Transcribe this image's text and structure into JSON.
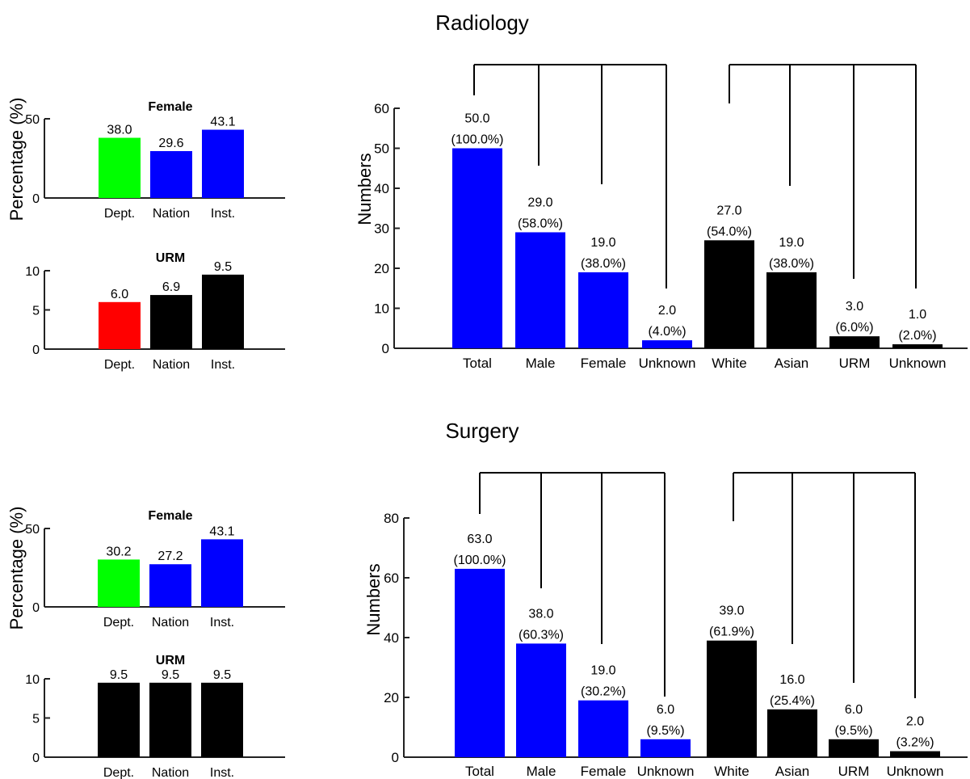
{
  "chart_data": [
    {
      "type": "bar",
      "panel": "radiology-female",
      "title": "Female",
      "ylabel": "Percentage (%)",
      "ylim": [
        0,
        50
      ],
      "yticks": [
        0,
        50
      ],
      "categories": [
        "Dept.",
        "Nation",
        "Inst."
      ],
      "values": [
        38.0,
        29.6,
        43.1
      ],
      "value_labels": [
        "38.0",
        "29.6",
        "43.1"
      ],
      "colors": [
        "#00ff00",
        "#0000ff",
        "#0000ff"
      ]
    },
    {
      "type": "bar",
      "panel": "radiology-urm",
      "title": "URM",
      "ylabel": "",
      "ylim": [
        0,
        10
      ],
      "yticks": [
        0,
        5,
        10
      ],
      "categories": [
        "Dept.",
        "Nation",
        "Inst."
      ],
      "values": [
        6.0,
        6.9,
        9.5
      ],
      "value_labels": [
        "6.0",
        "6.9",
        "9.5"
      ],
      "colors": [
        "#ff0000",
        "#000000",
        "#000000"
      ]
    },
    {
      "type": "bar",
      "panel": "radiology-main",
      "title": "Radiology",
      "ylabel": "Numbers",
      "ylim": [
        0,
        60
      ],
      "yticks": [
        0,
        10,
        20,
        30,
        40,
        50,
        60
      ],
      "categories": [
        "Total",
        "Male",
        "Female",
        "Unknown",
        "White",
        "Asian",
        "URM",
        "Unknown"
      ],
      "values": [
        50,
        29,
        19,
        2,
        27,
        19,
        3,
        1
      ],
      "value_labels": [
        "50.0",
        "29.0",
        "19.0",
        "2.0",
        "27.0",
        "19.0",
        "3.0",
        "1.0"
      ],
      "percent_labels": [
        "(100.0%)",
        "(58.0%)",
        "(38.0%)",
        "(4.0%)",
        "(54.0%)",
        "(38.0%)",
        "(6.0%)",
        "(2.0%)"
      ],
      "colors": [
        "#0000ff",
        "#0000ff",
        "#0000ff",
        "#0000ff",
        "#000000",
        "#000000",
        "#000000",
        "#000000"
      ]
    },
    {
      "type": "bar",
      "panel": "surgery-female",
      "title": "Female",
      "ylabel": "Percentage (%)",
      "ylim": [
        0,
        50
      ],
      "yticks": [
        0,
        50
      ],
      "categories": [
        "Dept.",
        "Nation",
        "Inst."
      ],
      "values": [
        30.2,
        27.2,
        43.1
      ],
      "value_labels": [
        "30.2",
        "27.2",
        "43.1"
      ],
      "colors": [
        "#00ff00",
        "#0000ff",
        "#0000ff"
      ]
    },
    {
      "type": "bar",
      "panel": "surgery-urm",
      "title": "URM",
      "ylabel": "",
      "ylim": [
        0,
        10
      ],
      "yticks": [
        0,
        5,
        10
      ],
      "categories": [
        "Dept.",
        "Nation",
        "Inst."
      ],
      "values": [
        9.5,
        9.5,
        9.5
      ],
      "value_labels": [
        "9.5",
        "9.5",
        "9.5"
      ],
      "colors": [
        "#000000",
        "#000000",
        "#000000"
      ]
    },
    {
      "type": "bar",
      "panel": "surgery-main",
      "title": "Surgery",
      "ylabel": "Numbers",
      "ylim": [
        0,
        80
      ],
      "yticks": [
        0,
        20,
        40,
        60,
        80
      ],
      "categories": [
        "Total",
        "Male",
        "Female",
        "Unknown",
        "White",
        "Asian",
        "URM",
        "Unknown"
      ],
      "values": [
        63,
        38,
        19,
        6,
        39,
        16,
        6,
        2
      ],
      "value_labels": [
        "63.0",
        "38.0",
        "19.0",
        "6.0",
        "39.0",
        "16.0",
        "6.0",
        "2.0"
      ],
      "percent_labels": [
        "(100.0%)",
        "(60.3%)",
        "(30.2%)",
        "(9.5%)",
        "(61.9%)",
        "(25.4%)",
        "(9.5%)",
        "(3.2%)"
      ],
      "colors": [
        "#0000ff",
        "#0000ff",
        "#0000ff",
        "#0000ff",
        "#000000",
        "#000000",
        "#000000",
        "#000000"
      ]
    }
  ]
}
